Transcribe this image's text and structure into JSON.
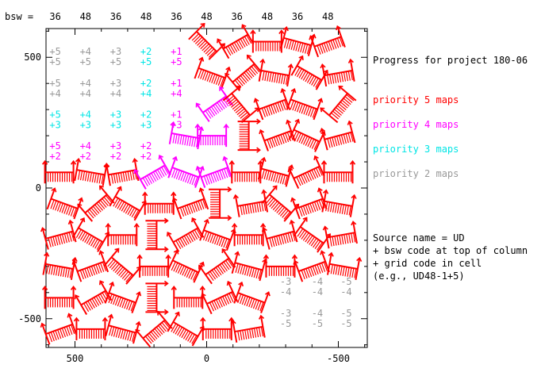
{
  "chart_data": {
    "type": "scatter",
    "title": "Progress for project 180-06",
    "xlim": [
      610,
      -610
    ],
    "ylim": [
      -610,
      610
    ],
    "x_ticks": [
      500,
      0,
      -500
    ],
    "y_ticks": [
      500,
      0,
      -500
    ],
    "bsw_label": "bsw =",
    "bsw_codes": [
      "36",
      "48",
      "36",
      "48",
      "36",
      "48",
      "36",
      "48",
      "36",
      "48"
    ],
    "column_centers": [
      575,
      460,
      345,
      230,
      115,
      0,
      -115,
      -230,
      -345,
      -460
    ],
    "grid_rows": [
      500,
      380,
      260,
      140
    ],
    "grid_codes": [
      {
        "row": 500,
        "cells": [
          [
            "+5",
            "+5",
            "gray"
          ],
          [
            "+4",
            "+5",
            "gray"
          ],
          [
            "+3",
            "+5",
            "gray"
          ],
          [
            "+2",
            "+5",
            "cyan"
          ],
          [
            "+1",
            "+5",
            "magenta"
          ]
        ]
      },
      {
        "row": 380,
        "cells": [
          [
            "+5",
            "+4",
            "gray"
          ],
          [
            "+4",
            "+4",
            "gray"
          ],
          [
            "+3",
            "+4",
            "gray"
          ],
          [
            "+2",
            "+4",
            "cyan"
          ],
          [
            "+1",
            "+4",
            "magenta"
          ]
        ]
      },
      {
        "row": 260,
        "cells": [
          [
            "+5",
            "+3",
            "cyan"
          ],
          [
            "+4",
            "+3",
            "cyan"
          ],
          [
            "+3",
            "+3",
            "cyan"
          ],
          [
            "+2",
            "+3",
            "cyan"
          ],
          [
            "+1",
            "+3",
            "magenta"
          ]
        ]
      },
      {
        "row": 140,
        "cells": [
          [
            "+5",
            "+2",
            "magenta"
          ],
          [
            "+4",
            "+2",
            "magenta"
          ],
          [
            "+3",
            "+2",
            "magenta"
          ],
          [
            "+2",
            "+2",
            "magenta"
          ]
        ]
      }
    ],
    "corner_codes": [
      {
        "row": -380,
        "cells": [
          [
            "-3",
            "-4"
          ],
          [
            "-4",
            "-4"
          ],
          [
            "-5",
            "-4"
          ]
        ]
      },
      {
        "row": -500,
        "cells": [
          [
            "-3",
            "-5"
          ],
          [
            "-4",
            "-5"
          ],
          [
            "-5",
            "-5"
          ]
        ]
      }
    ],
    "corner_columns": [
      -300,
      -420,
      -530
    ],
    "legend": [
      {
        "label": "priority 5 maps",
        "color": "#ff0000"
      },
      {
        "label": "priority 4 maps",
        "color": "#ff00ff"
      },
      {
        "label": "priority 3 maps",
        "color": "#00e5e5"
      },
      {
        "label": "priority 2 maps",
        "color": "#999999"
      }
    ],
    "note_lines": [
      "Source name = UD",
      " + bsw code at top of column",
      " + grid code in cell",
      "(e.g., UD48-1+5)"
    ],
    "maps": [
      {
        "x": 0,
        "y": 560,
        "a": 45,
        "p": 5
      },
      {
        "x": -110,
        "y": 560,
        "a": -30,
        "p": 5
      },
      {
        "x": -230,
        "y": 560,
        "a": 0,
        "p": 5
      },
      {
        "x": -345,
        "y": 560,
        "a": 15,
        "p": 5
      },
      {
        "x": -460,
        "y": 560,
        "a": -20,
        "p": 5
      },
      {
        "x": -20,
        "y": 440,
        "a": 20,
        "p": 5
      },
      {
        "x": -140,
        "y": 440,
        "a": -40,
        "p": 5
      },
      {
        "x": -260,
        "y": 440,
        "a": 10,
        "p": 5
      },
      {
        "x": -390,
        "y": 440,
        "a": 30,
        "p": 5
      },
      {
        "x": -500,
        "y": 440,
        "a": -10,
        "p": 5
      },
      {
        "x": -30,
        "y": 320,
        "a": -35,
        "p": 4
      },
      {
        "x": -130,
        "y": 320,
        "a": 50,
        "p": 5
      },
      {
        "x": -250,
        "y": 320,
        "a": -20,
        "p": 5
      },
      {
        "x": -370,
        "y": 320,
        "a": 20,
        "p": 5
      },
      {
        "x": -500,
        "y": 320,
        "a": -50,
        "p": 5
      },
      {
        "x": 80,
        "y": 200,
        "a": 10,
        "p": 4
      },
      {
        "x": -20,
        "y": 200,
        "a": 0,
        "p": 4
      },
      {
        "x": -160,
        "y": 200,
        "a": 90,
        "p": 5
      },
      {
        "x": -270,
        "y": 200,
        "a": -20,
        "p": 5
      },
      {
        "x": -380,
        "y": 200,
        "a": 25,
        "p": 5
      },
      {
        "x": -500,
        "y": 200,
        "a": -15,
        "p": 5
      },
      {
        "x": 560,
        "y": 60,
        "a": 0,
        "p": 5
      },
      {
        "x": 440,
        "y": 60,
        "a": 10,
        "p": 5
      },
      {
        "x": 320,
        "y": 60,
        "a": -10,
        "p": 5
      },
      {
        "x": 205,
        "y": 60,
        "a": -30,
        "p": 4
      },
      {
        "x": 80,
        "y": 60,
        "a": 20,
        "p": 4
      },
      {
        "x": -30,
        "y": 60,
        "a": -20,
        "p": 4
      },
      {
        "x": -150,
        "y": 60,
        "a": 0,
        "p": 5
      },
      {
        "x": -260,
        "y": 60,
        "a": 15,
        "p": 5
      },
      {
        "x": -380,
        "y": 60,
        "a": -25,
        "p": 5
      },
      {
        "x": -500,
        "y": 60,
        "a": 0,
        "p": 5
      },
      {
        "x": 540,
        "y": -60,
        "a": 20,
        "p": 5
      },
      {
        "x": 420,
        "y": -60,
        "a": -40,
        "p": 5
      },
      {
        "x": 300,
        "y": -60,
        "a": 30,
        "p": 5
      },
      {
        "x": 180,
        "y": -60,
        "a": 0,
        "p": 5
      },
      {
        "x": 60,
        "y": -60,
        "a": -20,
        "p": 5
      },
      {
        "x": -50,
        "y": -60,
        "a": 90,
        "p": 5
      },
      {
        "x": -170,
        "y": -60,
        "a": -10,
        "p": 5
      },
      {
        "x": -280,
        "y": -60,
        "a": 40,
        "p": 5
      },
      {
        "x": -390,
        "y": -60,
        "a": -20,
        "p": 5
      },
      {
        "x": -500,
        "y": -60,
        "a": 10,
        "p": 5
      },
      {
        "x": 560,
        "y": -180,
        "a": -15,
        "p": 5
      },
      {
        "x": 440,
        "y": -180,
        "a": 30,
        "p": 5
      },
      {
        "x": 320,
        "y": -180,
        "a": 0,
        "p": 5
      },
      {
        "x": 190,
        "y": -180,
        "a": 90,
        "p": 5
      },
      {
        "x": 80,
        "y": -180,
        "a": -30,
        "p": 5
      },
      {
        "x": -40,
        "y": -180,
        "a": 20,
        "p": 5
      },
      {
        "x": -160,
        "y": -180,
        "a": 0,
        "p": 5
      },
      {
        "x": -280,
        "y": -180,
        "a": -15,
        "p": 5
      },
      {
        "x": -400,
        "y": -180,
        "a": 35,
        "p": 5
      },
      {
        "x": -510,
        "y": -180,
        "a": -10,
        "p": 5
      },
      {
        "x": 560,
        "y": -300,
        "a": 10,
        "p": 5
      },
      {
        "x": 440,
        "y": -300,
        "a": -20,
        "p": 5
      },
      {
        "x": 320,
        "y": -300,
        "a": 40,
        "p": 5
      },
      {
        "x": 200,
        "y": -300,
        "a": 0,
        "p": 5
      },
      {
        "x": 80,
        "y": -300,
        "a": 25,
        "p": 5
      },
      {
        "x": -40,
        "y": -300,
        "a": -35,
        "p": 5
      },
      {
        "x": -160,
        "y": -300,
        "a": 15,
        "p": 5
      },
      {
        "x": -280,
        "y": -300,
        "a": 0,
        "p": 5
      },
      {
        "x": -400,
        "y": -300,
        "a": -20,
        "p": 5
      },
      {
        "x": -520,
        "y": -300,
        "a": 10,
        "p": 5
      },
      {
        "x": 560,
        "y": -420,
        "a": 0,
        "p": 5
      },
      {
        "x": 430,
        "y": -420,
        "a": -30,
        "p": 5
      },
      {
        "x": 320,
        "y": -420,
        "a": 20,
        "p": 5
      },
      {
        "x": 190,
        "y": -420,
        "a": 90,
        "p": 5
      },
      {
        "x": 70,
        "y": -420,
        "a": 0,
        "p": 5
      },
      {
        "x": -50,
        "y": -420,
        "a": -25,
        "p": 5
      },
      {
        "x": -170,
        "y": -420,
        "a": 20,
        "p": 5
      },
      {
        "x": 560,
        "y": -540,
        "a": -20,
        "p": 5
      },
      {
        "x": 440,
        "y": -540,
        "a": 0,
        "p": 5
      },
      {
        "x": 320,
        "y": -540,
        "a": 15,
        "p": 5
      },
      {
        "x": 200,
        "y": -540,
        "a": -40,
        "p": 5
      },
      {
        "x": 80,
        "y": -540,
        "a": 30,
        "p": 5
      },
      {
        "x": -40,
        "y": -540,
        "a": 0,
        "p": 5
      },
      {
        "x": -160,
        "y": -540,
        "a": -10,
        "p": 5
      }
    ]
  }
}
